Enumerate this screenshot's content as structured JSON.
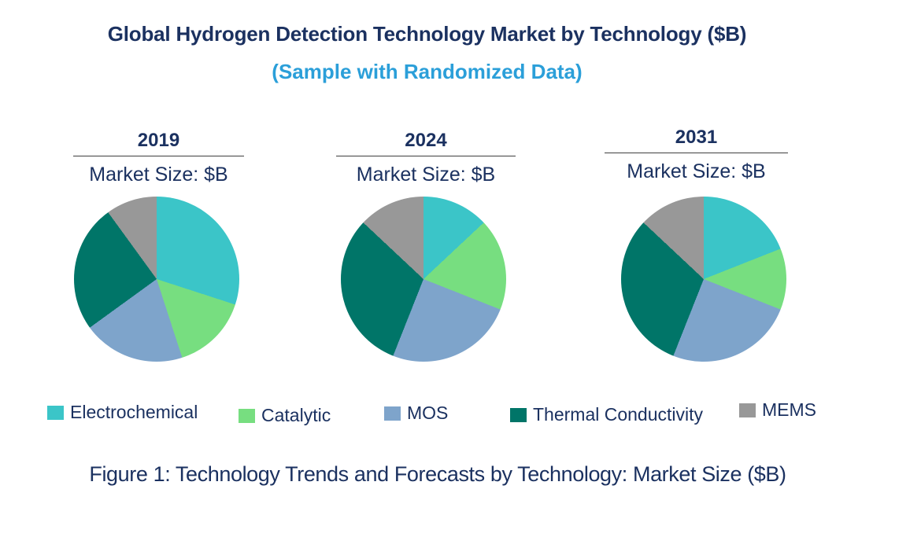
{
  "title": "Global Hydrogen Detection Technology Market by Technology ($B)",
  "subtitle": "(Sample with Randomized Data)",
  "caption": "Figure 1: Technology Trends and Forecasts by Technology: Market Size ($B)",
  "colors": {
    "navy_text": "#1B3160",
    "accent_blue": "#2B9FD9",
    "header_underline": "#3f3f3f",
    "electrochemical": "#3BC5C8",
    "catalytic": "#77DE80",
    "mos": "#7EA4CB",
    "thermal_conductivity": "#007568",
    "mems": "#989898"
  },
  "legend": [
    {
      "label": "Electrochemical",
      "color": "#3BC5C8"
    },
    {
      "label": "Catalytic",
      "color": "#77DE80"
    },
    {
      "label": "MOS",
      "color": "#7EA4CB"
    },
    {
      "label": "Thermal Conductivity",
      "color": "#007568"
    },
    {
      "label": "MEMS",
      "color": "#989898"
    }
  ],
  "values_note": "No numeric labels are printed on the charts; values are percent shares estimated from slice angles (each pie sums to 100).",
  "chart_data": [
    {
      "type": "pie",
      "title": "2019",
      "subtitle": "Market Size: $B",
      "categories": [
        "Electrochemical",
        "Catalytic",
        "MOS",
        "Thermal Conductivity",
        "MEMS"
      ],
      "values": [
        30,
        15,
        20,
        25,
        10
      ],
      "units": "% share (estimated)",
      "start_angle_deg": 0,
      "direction": "clockwise",
      "legend_position": "bottom"
    },
    {
      "type": "pie",
      "title": "2024",
      "subtitle": "Market Size: $B",
      "categories": [
        "Electrochemical",
        "Catalytic",
        "MOS",
        "Thermal Conductivity",
        "MEMS"
      ],
      "values": [
        13,
        18,
        25,
        31,
        13
      ],
      "units": "% share (estimated)",
      "start_angle_deg": 0,
      "direction": "clockwise",
      "legend_position": "bottom"
    },
    {
      "type": "pie",
      "title": "2031",
      "subtitle": "Market Size: $B",
      "categories": [
        "Electrochemical",
        "Catalytic",
        "MOS",
        "Thermal Conductivity",
        "MEMS"
      ],
      "values": [
        19,
        12,
        25,
        31,
        13
      ],
      "units": "% share (estimated)",
      "start_angle_deg": 0,
      "direction": "clockwise",
      "legend_position": "bottom"
    }
  ]
}
